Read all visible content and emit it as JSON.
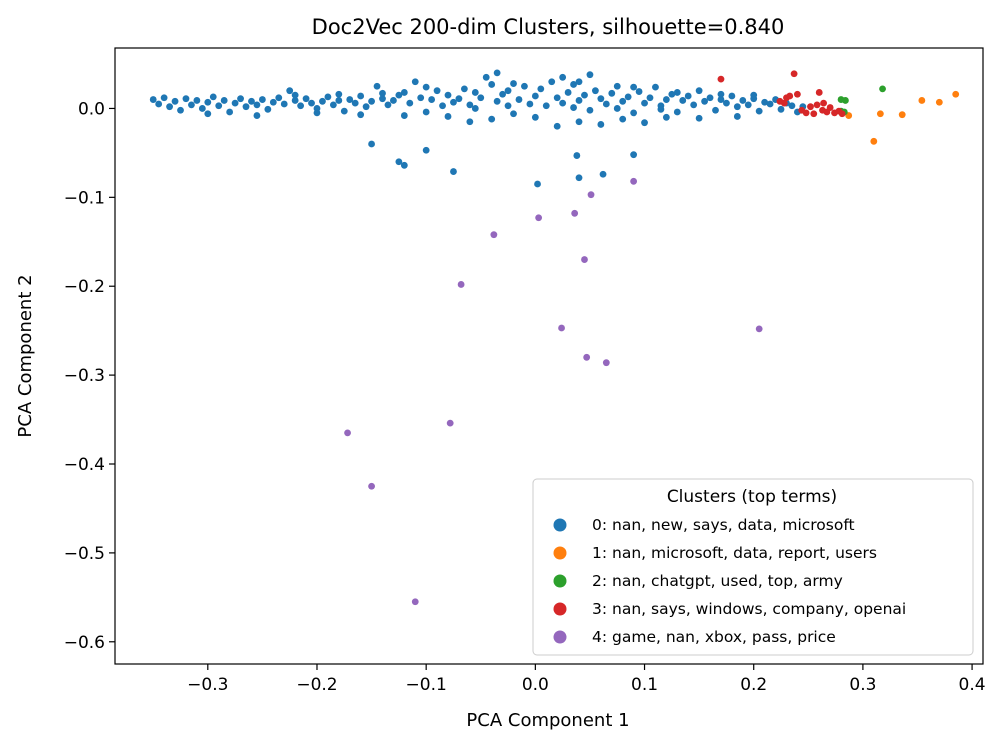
{
  "chart_data": {
    "type": "scatter",
    "title": "Doc2Vec 200-dim Clusters, silhouette=0.840",
    "xlabel": "PCA Component 1",
    "ylabel": "PCA Component 2",
    "xlim": [
      -0.385,
      0.41
    ],
    "ylim": [
      -0.625,
      0.068
    ],
    "xticks": [
      -0.3,
      -0.2,
      -0.1,
      0.0,
      0.1,
      0.2,
      0.3,
      0.4
    ],
    "xtick_labels": [
      "−0.3",
      "−0.2",
      "−0.1",
      "0.0",
      "0.1",
      "0.2",
      "0.3",
      "0.4"
    ],
    "yticks": [
      0.0,
      -0.1,
      -0.2,
      -0.3,
      -0.4,
      -0.5,
      -0.6
    ],
    "ytick_labels": [
      "0.0",
      "−0.1",
      "−0.2",
      "−0.3",
      "−0.4",
      "−0.5",
      "−0.6"
    ],
    "grid": false,
    "legend": {
      "title": "Clusters (top terms)",
      "placement": "lower-right"
    },
    "series": [
      {
        "name": "0: nan, new, says, data, microsoft",
        "color": "#1f77b4",
        "points": [
          [
            -0.35,
            0.01
          ],
          [
            -0.345,
            0.005
          ],
          [
            -0.34,
            0.012
          ],
          [
            -0.335,
            0.002
          ],
          [
            -0.33,
            0.008
          ],
          [
            -0.325,
            -0.002
          ],
          [
            -0.32,
            0.011
          ],
          [
            -0.315,
            0.004
          ],
          [
            -0.31,
            0.009
          ],
          [
            -0.305,
            0.0
          ],
          [
            -0.3,
            0.007
          ],
          [
            -0.295,
            0.013
          ],
          [
            -0.29,
            0.003
          ],
          [
            -0.285,
            0.009
          ],
          [
            -0.28,
            -0.004
          ],
          [
            -0.275,
            0.006
          ],
          [
            -0.27,
            0.011
          ],
          [
            -0.265,
            0.002
          ],
          [
            -0.26,
            0.008
          ],
          [
            -0.255,
            0.004
          ],
          [
            -0.25,
            0.01
          ],
          [
            -0.245,
            -0.001
          ],
          [
            -0.24,
            0.007
          ],
          [
            -0.235,
            0.012
          ],
          [
            -0.23,
            0.005
          ],
          [
            -0.225,
            0.02
          ],
          [
            -0.22,
            0.009
          ],
          [
            -0.215,
            0.003
          ],
          [
            -0.21,
            0.011
          ],
          [
            -0.205,
            0.006
          ],
          [
            -0.2,
            0.0
          ],
          [
            -0.195,
            0.008
          ],
          [
            -0.19,
            0.013
          ],
          [
            -0.185,
            0.004
          ],
          [
            -0.18,
            0.009
          ],
          [
            -0.175,
            -0.003
          ],
          [
            -0.17,
            0.01
          ],
          [
            -0.165,
            0.006
          ],
          [
            -0.16,
            0.014
          ],
          [
            -0.155,
            0.002
          ],
          [
            -0.15,
            0.008
          ],
          [
            -0.145,
            0.025
          ],
          [
            -0.14,
            0.011
          ],
          [
            -0.135,
            0.004
          ],
          [
            -0.13,
            0.009
          ],
          [
            -0.125,
            0.015
          ],
          [
            -0.12,
            0.018
          ],
          [
            -0.115,
            0.006
          ],
          [
            -0.11,
            0.03
          ],
          [
            -0.105,
            0.012
          ],
          [
            -0.1,
            -0.004
          ],
          [
            -0.095,
            0.01
          ],
          [
            -0.09,
            0.02
          ],
          [
            -0.085,
            0.003
          ],
          [
            -0.08,
            0.015
          ],
          [
            -0.075,
            0.007
          ],
          [
            -0.07,
            0.011
          ],
          [
            -0.065,
            0.022
          ],
          [
            -0.06,
            0.004
          ],
          [
            -0.055,
            0.018
          ],
          [
            -0.05,
            0.012
          ],
          [
            -0.045,
            0.035
          ],
          [
            -0.04,
            0.027
          ],
          [
            -0.035,
            0.008
          ],
          [
            -0.03,
            0.016
          ],
          [
            -0.025,
            0.02
          ],
          [
            -0.02,
            -0.006
          ],
          [
            -0.015,
            0.01
          ],
          [
            -0.01,
            0.025
          ],
          [
            -0.005,
            0.005
          ],
          [
            0.0,
            0.014
          ],
          [
            0.005,
            0.022
          ],
          [
            0.01,
            0.003
          ],
          [
            0.015,
            0.03
          ],
          [
            0.02,
            0.012
          ],
          [
            0.025,
            0.006
          ],
          [
            0.03,
            0.018
          ],
          [
            0.035,
            0.027
          ],
          [
            0.04,
            0.009
          ],
          [
            0.045,
            0.015
          ],
          [
            0.05,
            -0.002
          ],
          [
            0.055,
            0.02
          ],
          [
            0.06,
            0.011
          ],
          [
            0.065,
            0.005
          ],
          [
            0.07,
            0.017
          ],
          [
            0.075,
            0.025
          ],
          [
            0.08,
            0.008
          ],
          [
            0.085,
            0.013
          ],
          [
            0.09,
            -0.005
          ],
          [
            0.095,
            0.019
          ],
          [
            0.1,
            0.006
          ],
          [
            0.105,
            0.012
          ],
          [
            0.11,
            0.024
          ],
          [
            0.115,
            0.003
          ],
          [
            0.12,
            0.01
          ],
          [
            0.125,
            0.016
          ],
          [
            0.13,
            -0.004
          ],
          [
            0.135,
            0.009
          ],
          [
            0.14,
            0.014
          ],
          [
            0.145,
            0.004
          ],
          [
            0.15,
            0.02
          ],
          [
            0.155,
            0.008
          ],
          [
            0.16,
            0.012
          ],
          [
            0.165,
            -0.002
          ],
          [
            0.17,
            0.01
          ],
          [
            0.175,
            0.006
          ],
          [
            0.18,
            0.014
          ],
          [
            0.185,
            0.002
          ],
          [
            0.19,
            0.009
          ],
          [
            0.195,
            0.004
          ],
          [
            0.2,
            0.011
          ],
          [
            0.205,
            -0.003
          ],
          [
            0.21,
            0.007
          ],
          [
            0.215,
            0.005
          ],
          [
            0.22,
            0.01
          ],
          [
            0.225,
            -0.001
          ],
          [
            0.23,
            0.006
          ],
          [
            0.235,
            0.003
          ],
          [
            0.24,
            -0.004
          ],
          [
            0.245,
            0.002
          ],
          [
            -0.3,
            -0.006
          ],
          [
            -0.2,
            -0.005
          ],
          [
            -0.16,
            -0.007
          ],
          [
            -0.12,
            -0.008
          ],
          [
            -0.08,
            -0.009
          ],
          [
            -0.04,
            -0.012
          ],
          [
            0.0,
            -0.01
          ],
          [
            0.04,
            -0.015
          ],
          [
            0.08,
            -0.012
          ],
          [
            0.12,
            -0.01
          ],
          [
            -0.06,
            -0.015
          ],
          [
            0.02,
            -0.02
          ],
          [
            0.06,
            -0.018
          ],
          [
            0.1,
            -0.016
          ],
          [
            0.15,
            -0.011
          ],
          [
            -0.22,
            0.015
          ],
          [
            -0.18,
            0.016
          ],
          [
            -0.14,
            0.017
          ],
          [
            -0.02,
            0.028
          ],
          [
            0.04,
            0.03
          ],
          [
            0.09,
            0.024
          ],
          [
            0.13,
            0.018
          ],
          [
            0.17,
            0.016
          ],
          [
            0.2,
            0.015
          ],
          [
            -0.1,
            0.024
          ],
          [
            -0.055,
            0.0
          ],
          [
            -0.025,
            0.003
          ],
          [
            0.035,
            0.001
          ],
          [
            0.075,
            0.0
          ],
          [
            0.115,
            -0.001
          ],
          [
            -0.035,
            0.04
          ],
          [
            0.025,
            0.035
          ],
          [
            0.05,
            0.038
          ],
          [
            -0.255,
            -0.008
          ],
          [
            0.185,
            -0.009
          ],
          [
            -0.15,
            -0.04
          ],
          [
            -0.125,
            -0.06
          ],
          [
            -0.12,
            -0.064
          ],
          [
            -0.1,
            -0.047
          ],
          [
            -0.075,
            -0.071
          ],
          [
            0.002,
            -0.085
          ],
          [
            0.038,
            -0.053
          ],
          [
            0.04,
            -0.078
          ],
          [
            0.062,
            -0.074
          ],
          [
            0.09,
            -0.052
          ]
        ]
      },
      {
        "name": "1: nan, microsoft, data, report, users",
        "color": "#ff7f0e",
        "points": [
          [
            0.287,
            -0.008
          ],
          [
            0.31,
            -0.037
          ],
          [
            0.316,
            -0.006
          ],
          [
            0.336,
            -0.007
          ],
          [
            0.354,
            0.009
          ],
          [
            0.37,
            0.007
          ],
          [
            0.385,
            0.016
          ]
        ]
      },
      {
        "name": "2: nan, chatgpt, used, top, army",
        "color": "#2ca02c",
        "points": [
          [
            0.28,
            0.01
          ],
          [
            0.284,
            0.009
          ],
          [
            0.28,
            -0.003
          ],
          [
            0.283,
            -0.004
          ],
          [
            0.318,
            0.022
          ]
        ]
      },
      {
        "name": "3: nan, says, windows, company, openai",
        "color": "#d62728",
        "points": [
          [
            0.17,
            0.033
          ],
          [
            0.224,
            0.008
          ],
          [
            0.228,
            0.006
          ],
          [
            0.23,
            0.012
          ],
          [
            0.233,
            0.014
          ],
          [
            0.237,
            0.039
          ],
          [
            0.24,
            0.016
          ],
          [
            0.244,
            -0.002
          ],
          [
            0.248,
            -0.005
          ],
          [
            0.252,
            0.002
          ],
          [
            0.255,
            -0.006
          ],
          [
            0.258,
            0.004
          ],
          [
            0.26,
            0.018
          ],
          [
            0.263,
            -0.002
          ],
          [
            0.267,
            -0.004
          ],
          [
            0.27,
            0.001
          ],
          [
            0.274,
            -0.005
          ],
          [
            0.278,
            -0.003
          ],
          [
            0.281,
            -0.006
          ],
          [
            0.264,
            0.006
          ]
        ]
      },
      {
        "name": "4: game, nan, xbox, pass, price",
        "color": "#9467bd",
        "points": [
          [
            -0.172,
            -0.365
          ],
          [
            -0.15,
            -0.425
          ],
          [
            -0.11,
            -0.555
          ],
          [
            -0.078,
            -0.354
          ],
          [
            -0.068,
            -0.198
          ],
          [
            -0.038,
            -0.142
          ],
          [
            0.003,
            -0.123
          ],
          [
            0.024,
            -0.247
          ],
          [
            0.036,
            -0.118
          ],
          [
            0.045,
            -0.17
          ],
          [
            0.047,
            -0.28
          ],
          [
            0.051,
            -0.097
          ],
          [
            0.065,
            -0.286
          ],
          [
            0.09,
            -0.082
          ],
          [
            0.205,
            -0.248
          ]
        ]
      }
    ]
  }
}
